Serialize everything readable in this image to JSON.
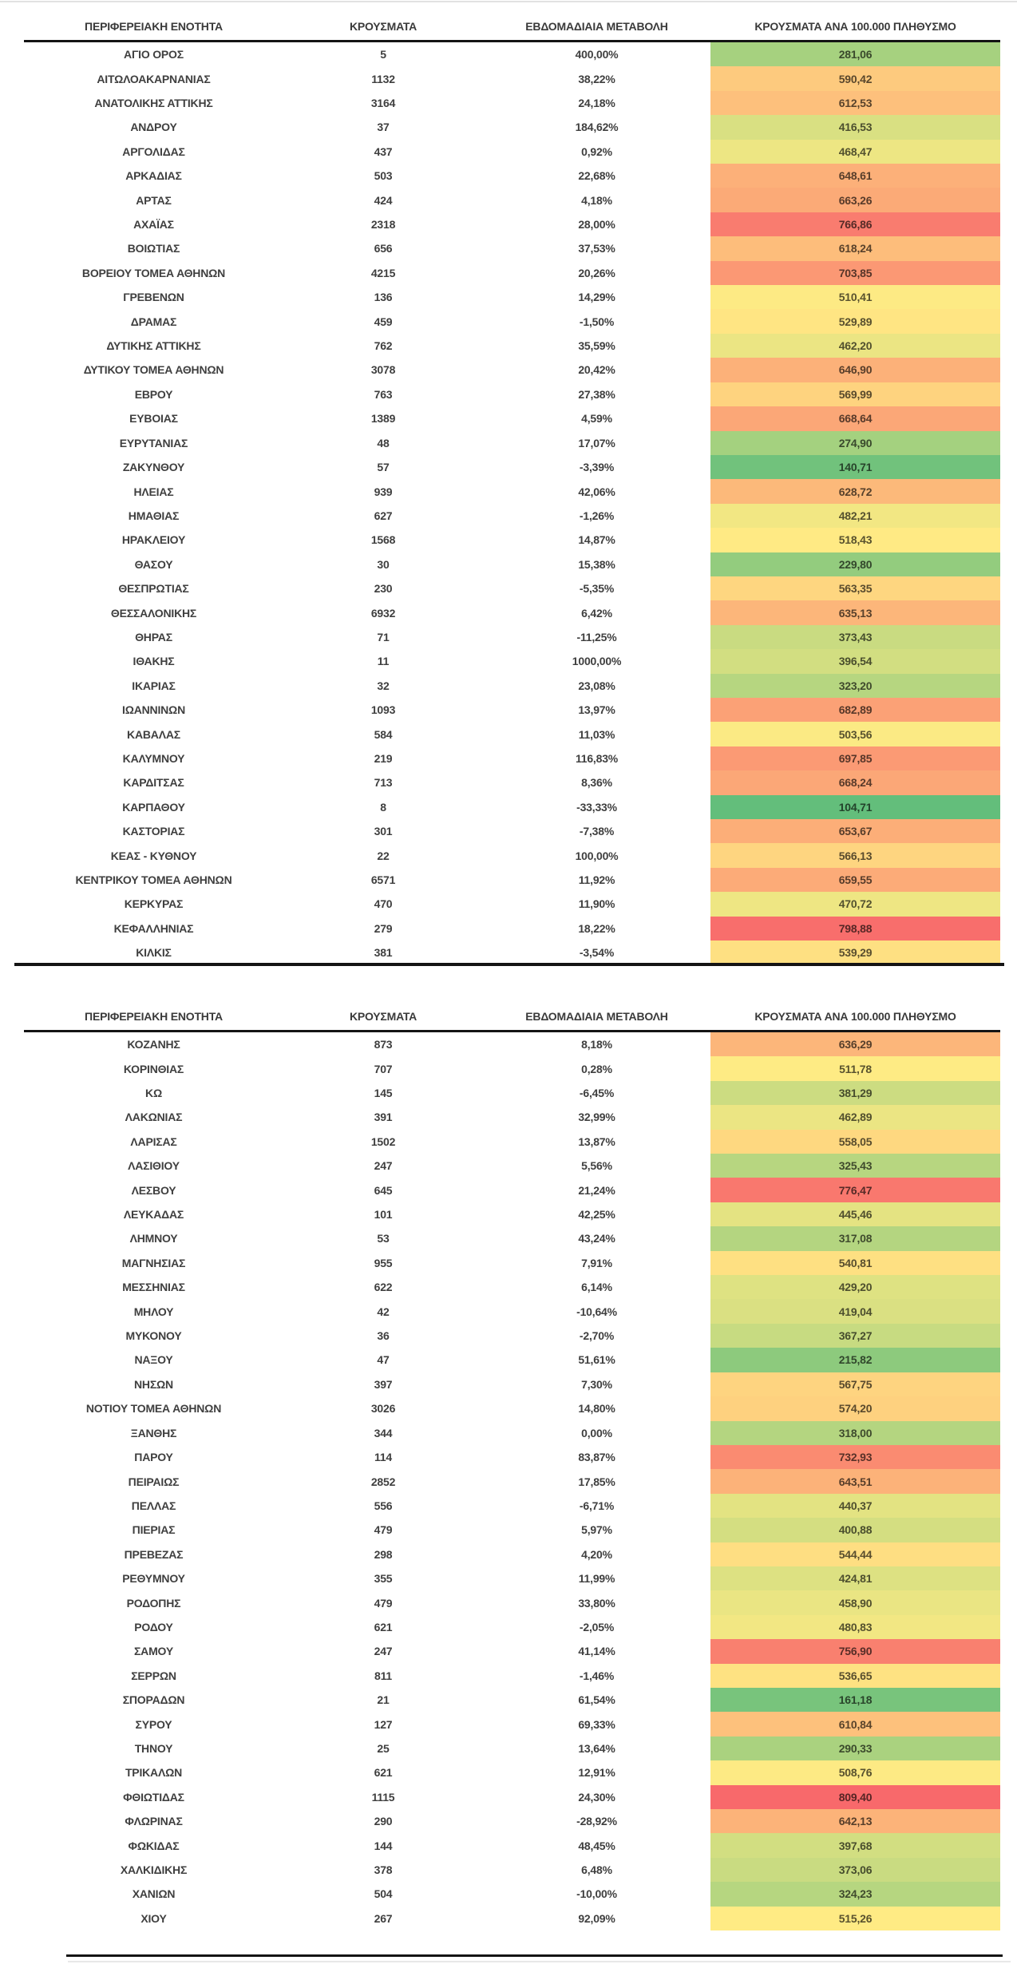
{
  "header": {
    "col_region": "ΠΕΡΙΦΕΡΕΙΑΚΗ ΕΝΟΤΗΤΑ",
    "col_cases": "ΚΡΟΥΣΜΑΤΑ",
    "col_weekly": "ΕΒΔΟΜΑΔΙΑΙΑ ΜΕΤΑΒΟΛΗ",
    "col_per100k": "ΚΡΟΥΣΜΑΤΑ ΑΝΑ 100.000 ΠΛΗΘΥΣΜΟ"
  },
  "colorscale": {
    "min_color": "#63BE7B",
    "mid_color": "#FFEB84",
    "max_color": "#F8696B",
    "mid_mode": "median",
    "applies_to_column_index": 3,
    "text_darken_factor": 0.35
  },
  "colors": {
    "text": "#3f3f3f",
    "rule": "#141414",
    "top_line": "#e2e2e2",
    "bottom_gray_line": "#e8e8e8"
  },
  "chart_data": {
    "type": "table",
    "columns": [
      "ΠΕΡΙΦΕΡΕΙΑΚΗ ΕΝΟΤΗΤΑ",
      "ΚΡΟΥΣΜΑΤΑ",
      "ΕΒΔΟΜΑΔΙΑΙΑ ΜΕΤΑΒΟΛΗ",
      "ΚΡΟΥΣΜΑΤΑ ΑΝΑ 100.000 ΠΛΗΘΥΣΜΟ"
    ],
    "heatmap_column": "ΚΡΟΥΣΜΑΤΑ ΑΝΑ 100.000 ΠΛΗΘΥΣΜΟ",
    "heatmap_range": {
      "min": 104.71,
      "median": 515.26,
      "max": 809.4
    },
    "tables": [
      {
        "rows": [
          [
            "ΑΓΙΟ ΟΡΟΣ",
            "5",
            "400,00%",
            "281,06"
          ],
          [
            "ΑΙΤΩΛΟΑΚΑΡΝΑΝΙΑΣ",
            "1132",
            "38,22%",
            "590,42"
          ],
          [
            "ΑΝΑΤΟΛΙΚΗΣ ΑΤΤΙΚΗΣ",
            "3164",
            "24,18%",
            "612,53"
          ],
          [
            "ΑΝΔΡΟΥ",
            "37",
            "184,62%",
            "416,53"
          ],
          [
            "ΑΡΓΟΛΙΔΑΣ",
            "437",
            "0,92%",
            "468,47"
          ],
          [
            "ΑΡΚΑΔΙΑΣ",
            "503",
            "22,68%",
            "648,61"
          ],
          [
            "ΑΡΤΑΣ",
            "424",
            "4,18%",
            "663,26"
          ],
          [
            "ΑΧΑΪΑΣ",
            "2318",
            "28,00%",
            "766,86"
          ],
          [
            "ΒΟΙΩΤΙΑΣ",
            "656",
            "37,53%",
            "618,24"
          ],
          [
            "ΒΟΡΕΙΟΥ ΤΟΜΕΑ ΑΘΗΝΩΝ",
            "4215",
            "20,26%",
            "703,85"
          ],
          [
            "ΓΡΕΒΕΝΩΝ",
            "136",
            "14,29%",
            "510,41"
          ],
          [
            "ΔΡΑΜΑΣ",
            "459",
            "-1,50%",
            "529,89"
          ],
          [
            "ΔΥΤΙΚΗΣ ΑΤΤΙΚΗΣ",
            "762",
            "35,59%",
            "462,20"
          ],
          [
            "ΔΥΤΙΚΟΥ ΤΟΜΕΑ ΑΘΗΝΩΝ",
            "3078",
            "20,42%",
            "646,90"
          ],
          [
            "ΕΒΡΟΥ",
            "763",
            "27,38%",
            "569,99"
          ],
          [
            "ΕΥΒΟΙΑΣ",
            "1389",
            "4,59%",
            "668,64"
          ],
          [
            "ΕΥΡΥΤΑΝΙΑΣ",
            "48",
            "17,07%",
            "274,90"
          ],
          [
            "ΖΑΚΥΝΘΟΥ",
            "57",
            "-3,39%",
            "140,71"
          ],
          [
            "ΗΛΕΙΑΣ",
            "939",
            "42,06%",
            "628,72"
          ],
          [
            "ΗΜΑΘΙΑΣ",
            "627",
            "-1,26%",
            "482,21"
          ],
          [
            "ΗΡΑΚΛΕΙΟΥ",
            "1568",
            "14,87%",
            "518,43"
          ],
          [
            "ΘΑΣΟΥ",
            "30",
            "15,38%",
            "229,80"
          ],
          [
            "ΘΕΣΠΡΩΤΙΑΣ",
            "230",
            "-5,35%",
            "563,35"
          ],
          [
            "ΘΕΣΣΑΛΟΝΙΚΗΣ",
            "6932",
            "6,42%",
            "635,13"
          ],
          [
            "ΘΗΡΑΣ",
            "71",
            "-11,25%",
            "373,43"
          ],
          [
            "ΙΘΑΚΗΣ",
            "11",
            "1000,00%",
            "396,54"
          ],
          [
            "ΙΚΑΡΙΑΣ",
            "32",
            "23,08%",
            "323,20"
          ],
          [
            "ΙΩΑΝΝΙΝΩΝ",
            "1093",
            "13,97%",
            "682,89"
          ],
          [
            "ΚΑΒΑΛΑΣ",
            "584",
            "11,03%",
            "503,56"
          ],
          [
            "ΚΑΛΥΜΝΟΥ",
            "219",
            "116,83%",
            "697,85"
          ],
          [
            "ΚΑΡΔΙΤΣΑΣ",
            "713",
            "8,36%",
            "668,24"
          ],
          [
            "ΚΑΡΠΑΘΟΥ",
            "8",
            "-33,33%",
            "104,71"
          ],
          [
            "ΚΑΣΤΟΡΙΑΣ",
            "301",
            "-7,38%",
            "653,67"
          ],
          [
            "ΚΕΑΣ - ΚΥΘΝΟΥ",
            "22",
            "100,00%",
            "566,13"
          ],
          [
            "ΚΕΝΤΡΙΚΟΥ ΤΟΜΕΑ ΑΘΗΝΩΝ",
            "6571",
            "11,92%",
            "659,55"
          ],
          [
            "ΚΕΡΚΥΡΑΣ",
            "470",
            "11,90%",
            "470,72"
          ],
          [
            "ΚΕΦΑΛΛΗΝΙΑΣ",
            "279",
            "18,22%",
            "798,88"
          ],
          [
            "ΚΙΛΚΙΣ",
            "381",
            "-3,54%",
            "539,29"
          ]
        ]
      },
      {
        "rows": [
          [
            "ΚΟΖΑΝΗΣ",
            "873",
            "8,18%",
            "636,29"
          ],
          [
            "ΚΟΡΙΝΘΙΑΣ",
            "707",
            "0,28%",
            "511,78"
          ],
          [
            "ΚΩ",
            "145",
            "-6,45%",
            "381,29"
          ],
          [
            "ΛΑΚΩΝΙΑΣ",
            "391",
            "32,99%",
            "462,89"
          ],
          [
            "ΛΑΡΙΣΑΣ",
            "1502",
            "13,87%",
            "558,05"
          ],
          [
            "ΛΑΣΙΘΙΟΥ",
            "247",
            "5,56%",
            "325,43"
          ],
          [
            "ΛΕΣΒΟΥ",
            "645",
            "21,24%",
            "776,47"
          ],
          [
            "ΛΕΥΚΑΔΑΣ",
            "101",
            "42,25%",
            "445,46"
          ],
          [
            "ΛΗΜΝΟΥ",
            "53",
            "43,24%",
            "317,08"
          ],
          [
            "ΜΑΓΝΗΣΙΑΣ",
            "955",
            "7,91%",
            "540,81"
          ],
          [
            "ΜΕΣΣΗΝΙΑΣ",
            "622",
            "6,14%",
            "429,20"
          ],
          [
            "ΜΗΛΟΥ",
            "42",
            "-10,64%",
            "419,04"
          ],
          [
            "ΜΥΚΟΝΟΥ",
            "36",
            "-2,70%",
            "367,27"
          ],
          [
            "ΝΑΞΟΥ",
            "47",
            "51,61%",
            "215,82"
          ],
          [
            "ΝΗΣΩΝ",
            "397",
            "7,30%",
            "567,75"
          ],
          [
            "ΝΟΤΙΟΥ ΤΟΜΕΑ ΑΘΗΝΩΝ",
            "3026",
            "14,80%",
            "574,20"
          ],
          [
            "ΞΑΝΘΗΣ",
            "344",
            "0,00%",
            "318,00"
          ],
          [
            "ΠΑΡΟΥ",
            "114",
            "83,87%",
            "732,93"
          ],
          [
            "ΠΕΙΡΑΙΩΣ",
            "2852",
            "17,85%",
            "643,51"
          ],
          [
            "ΠΕΛΛΑΣ",
            "556",
            "-6,71%",
            "440,37"
          ],
          [
            "ΠΙΕΡΙΑΣ",
            "479",
            "5,97%",
            "400,88"
          ],
          [
            "ΠΡΕΒΕΖΑΣ",
            "298",
            "4,20%",
            "544,44"
          ],
          [
            "ΡΕΘΥΜΝΟΥ",
            "355",
            "11,99%",
            "424,81"
          ],
          [
            "ΡΟΔΟΠΗΣ",
            "479",
            "33,80%",
            "458,90"
          ],
          [
            "ΡΟΔΟΥ",
            "621",
            "-2,05%",
            "480,83"
          ],
          [
            "ΣΑΜΟΥ",
            "247",
            "41,14%",
            "756,90"
          ],
          [
            "ΣΕΡΡΩΝ",
            "811",
            "-1,46%",
            "536,65"
          ],
          [
            "ΣΠΟΡΑΔΩΝ",
            "21",
            "61,54%",
            "161,18"
          ],
          [
            "ΣΥΡΟΥ",
            "127",
            "69,33%",
            "610,84"
          ],
          [
            "ΤΗΝΟΥ",
            "25",
            "13,64%",
            "290,33"
          ],
          [
            "ΤΡΙΚΑΛΩΝ",
            "621",
            "12,91%",
            "508,76"
          ],
          [
            "ΦΘΙΩΤΙΔΑΣ",
            "1115",
            "24,30%",
            "809,40"
          ],
          [
            "ΦΛΩΡΙΝΑΣ",
            "290",
            "-28,92%",
            "642,13"
          ],
          [
            "ΦΩΚΙΔΑΣ",
            "144",
            "48,45%",
            "397,68"
          ],
          [
            "ΧΑΛΚΙΔΙΚΗΣ",
            "378",
            "6,48%",
            "373,06"
          ],
          [
            "ΧΑΝΙΩΝ",
            "504",
            "-10,00%",
            "324,23"
          ],
          [
            "ΧΙΟΥ",
            "267",
            "92,09%",
            "515,26"
          ]
        ]
      }
    ]
  }
}
